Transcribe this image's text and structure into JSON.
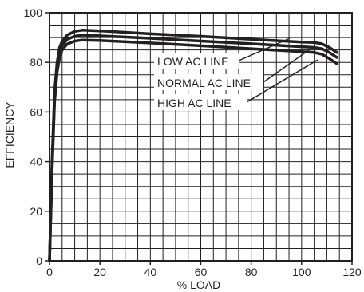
{
  "chart_data": {
    "type": "line",
    "xlabel": "% LOAD",
    "ylabel": "EFFICIENCY",
    "xlim": [
      0,
      120
    ],
    "ylim": [
      0,
      100
    ],
    "x_ticks": [
      "0",
      "20",
      "40",
      "60",
      "80",
      "100",
      "120"
    ],
    "y_ticks": [
      "0",
      "20",
      "40",
      "60",
      "80",
      "100"
    ],
    "grid": true,
    "series": [
      {
        "name": "LOW AC LINE",
        "points": [
          [
            0,
            0
          ],
          [
            1,
            40
          ],
          [
            2,
            68
          ],
          [
            3,
            80
          ],
          [
            4,
            86
          ],
          [
            5,
            88.5
          ],
          [
            7,
            91
          ],
          [
            10,
            92.5
          ],
          [
            13,
            93
          ],
          [
            20,
            92.7
          ],
          [
            40,
            91.5
          ],
          [
            60,
            90.5
          ],
          [
            80,
            89.3
          ],
          [
            100,
            88.2
          ],
          [
            105,
            88
          ],
          [
            108,
            87.5
          ],
          [
            111,
            86
          ],
          [
            114,
            84
          ]
        ]
      },
      {
        "name": "NORMAL AC LINE",
        "points": [
          [
            0,
            0
          ],
          [
            1,
            38
          ],
          [
            2,
            66
          ],
          [
            3,
            78
          ],
          [
            4,
            84
          ],
          [
            5,
            86.8
          ],
          [
            7,
            89.3
          ],
          [
            10,
            90.5
          ],
          [
            13,
            91
          ],
          [
            20,
            90.7
          ],
          [
            40,
            89.7
          ],
          [
            60,
            88.6
          ],
          [
            80,
            87.5
          ],
          [
            100,
            86.3
          ],
          [
            105,
            86
          ],
          [
            108,
            85.5
          ],
          [
            111,
            84
          ],
          [
            114,
            82
          ]
        ]
      },
      {
        "name": "HIGH AC LINE",
        "points": [
          [
            0,
            0
          ],
          [
            1,
            36
          ],
          [
            2,
            64
          ],
          [
            3,
            76
          ],
          [
            4,
            82
          ],
          [
            5,
            85
          ],
          [
            7,
            87.4
          ],
          [
            10,
            88.6
          ],
          [
            13,
            89
          ],
          [
            20,
            88.8
          ],
          [
            40,
            87.8
          ],
          [
            60,
            86.7
          ],
          [
            80,
            85.5
          ],
          [
            100,
            84.3
          ],
          [
            105,
            84
          ],
          [
            108,
            83.3
          ],
          [
            111,
            81.5
          ],
          [
            114,
            79.5
          ]
        ]
      }
    ],
    "colors": {
      "line": "#231f20",
      "grid": "#231f20",
      "background": "#ffffff"
    }
  }
}
